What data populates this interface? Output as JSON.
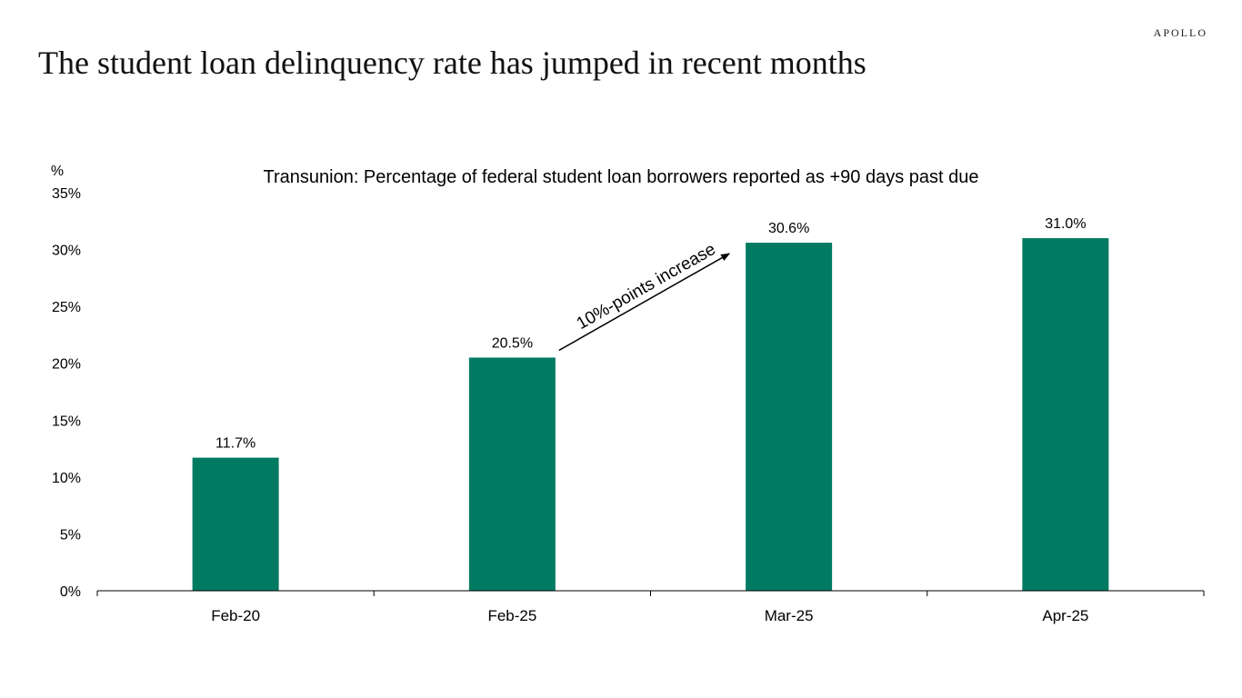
{
  "header": {
    "brand": "APOLLO",
    "title": "The student loan delinquency rate has jumped in recent months"
  },
  "chart_data": {
    "type": "bar",
    "title": "Transunion: Percentage of federal student loan borrowers reported as +90 days past due",
    "ylabel": "%",
    "xlabel": "",
    "categories": [
      "Feb-20",
      "Feb-25",
      "Mar-25",
      "Apr-25"
    ],
    "values": [
      11.7,
      20.5,
      30.6,
      31.0
    ],
    "data_labels": [
      "11.7%",
      "20.5%",
      "30.6%",
      "31.0%"
    ],
    "ylim": [
      0,
      35
    ],
    "yticks": [
      0,
      5,
      10,
      15,
      20,
      25,
      30,
      35
    ],
    "ytick_labels": [
      "0%",
      "5%",
      "10%",
      "15%",
      "20%",
      "25%",
      "30%",
      "35%"
    ],
    "grid": false,
    "bar_color": "#007B62",
    "annotation": {
      "text": "10%-points increase",
      "from_category": "Feb-25",
      "to_category": "Mar-25"
    }
  }
}
